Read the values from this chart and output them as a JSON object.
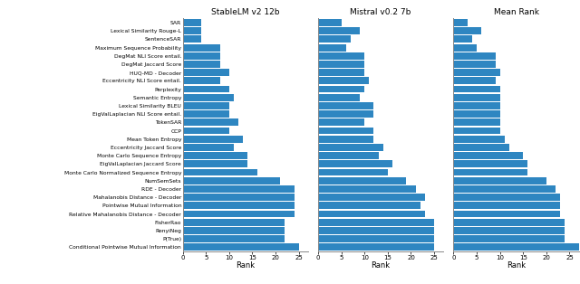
{
  "categories": [
    "SAR",
    "Lexical Similarity Rouge-L",
    "SentenceSAR",
    "Maximum Sequence Probability",
    "DegMat NLI Score entail.",
    "DegMat Jaccard Score",
    "HUQ-MD - Decoder",
    "Eccentricity NLI Score entail.",
    "Perplexity",
    "Semantic Entropy",
    "Lexical Similarity BLEU",
    "EigValLaplacian NLI Score entail.",
    "TokenSAR",
    "CCP",
    "Mean Token Entropy",
    "Eccentricity Jaccard Score",
    "Monte Carlo Sequence Entropy",
    "EigValLaplacian Jaccard Score",
    "Monte Carlo Normalized Sequence Entropy",
    "NumSemSets",
    "RDE - Decoder",
    "Mahalanobis Distance - Decoder",
    "Pointwise Mutual Information",
    "Relative Mahalanobis Distance - Decoder",
    "FisherRao",
    "RenyiNeg",
    "P(True)",
    "Conditional Pointwise Mutual Information"
  ],
  "stable_lm": [
    4,
    4,
    4,
    8,
    8,
    8,
    10,
    8,
    10,
    11,
    10,
    10,
    12,
    10,
    13,
    11,
    14,
    14,
    16,
    21,
    24,
    24,
    24,
    24,
    22,
    22,
    22,
    25
  ],
  "mistral": [
    5,
    9,
    7,
    6,
    10,
    10,
    10,
    11,
    10,
    9,
    12,
    12,
    10,
    12,
    12,
    14,
    13,
    16,
    15,
    19,
    21,
    23,
    22,
    23,
    25,
    25,
    25,
    25
  ],
  "mean_rank": [
    3,
    6,
    4,
    5,
    9,
    9,
    10,
    9,
    10,
    10,
    10,
    10,
    10,
    10,
    11,
    12,
    15,
    16,
    16,
    20,
    22,
    23,
    23,
    23,
    24,
    24,
    24,
    27
  ],
  "bar_color": "#2e86c1",
  "title1": "StableLM v2 12b",
  "title2": "Mistral v0.2 7b",
  "title3": "Mean Rank",
  "xlabel": "Rank",
  "xlim1": [
    0,
    27
  ],
  "xlim2": [
    0,
    27
  ],
  "xlim3": [
    0,
    27
  ],
  "background_color": "#ffffff"
}
